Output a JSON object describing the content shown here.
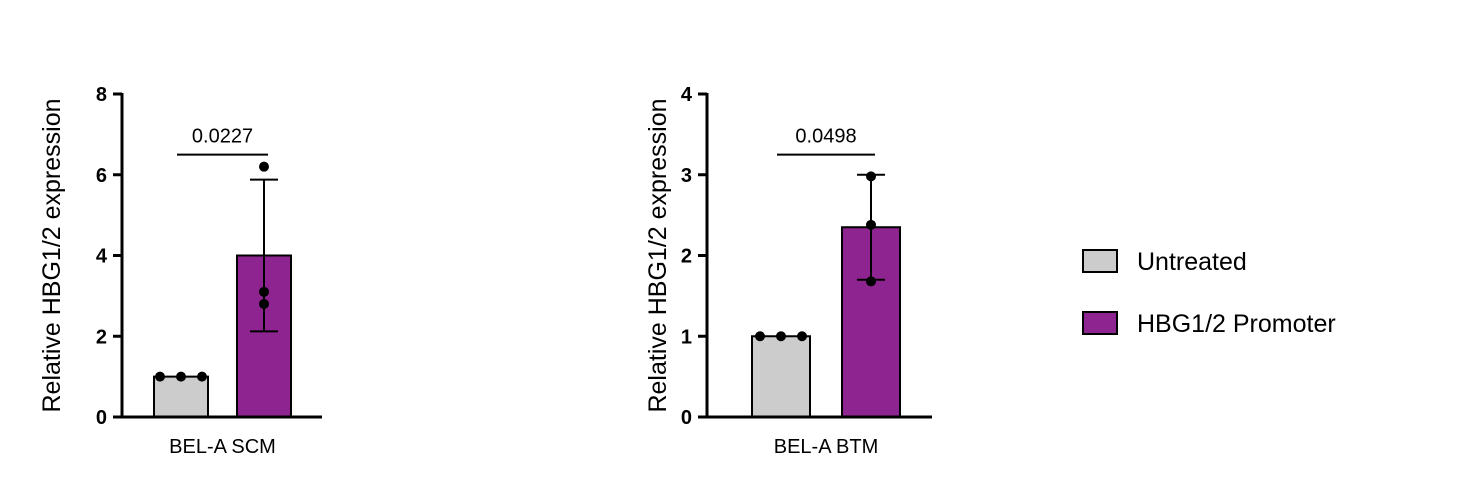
{
  "colors": {
    "untreated": "#cccccc",
    "promoter": "#8e2490",
    "bar_stroke": "#000000"
  },
  "legend": {
    "placement": "right",
    "items": [
      {
        "label": "Untreated",
        "color_key": "untreated"
      },
      {
        "label": "HBG1/2 Promoter",
        "color_key": "promoter"
      }
    ]
  },
  "chart_data": [
    {
      "type": "bar",
      "xlabel": "BEL-A SCM",
      "ylabel": "Relative HBG1/2 expression",
      "ylim": [
        0,
        8
      ],
      "yticks": [
        0,
        2,
        4,
        6,
        8
      ],
      "series": [
        {
          "name": "Untreated",
          "value": 1.0,
          "error_sd": 0,
          "points": [
            1.0,
            1.0,
            1.0
          ]
        },
        {
          "name": "HBG1/2 Promoter",
          "value": 4.0,
          "error_sd": 1.88,
          "points": [
            6.2,
            3.1,
            2.8
          ]
        }
      ],
      "significance": {
        "label": "0.0227",
        "y": 6.5
      }
    },
    {
      "type": "bar",
      "xlabel": "BEL-A BTM",
      "ylabel": "Relative HBG1/2 expression",
      "ylim": [
        0,
        4
      ],
      "yticks": [
        0,
        1,
        2,
        3,
        4
      ],
      "series": [
        {
          "name": "Untreated",
          "value": 1.0,
          "error_sd": 0,
          "points": [
            1.0,
            1.0,
            1.0
          ]
        },
        {
          "name": "HBG1/2 Promoter",
          "value": 2.35,
          "error_sd": 0.65,
          "points": [
            2.98,
            2.38,
            1.68
          ]
        }
      ],
      "significance": {
        "label": "0.0498",
        "y": 3.25
      }
    }
  ]
}
